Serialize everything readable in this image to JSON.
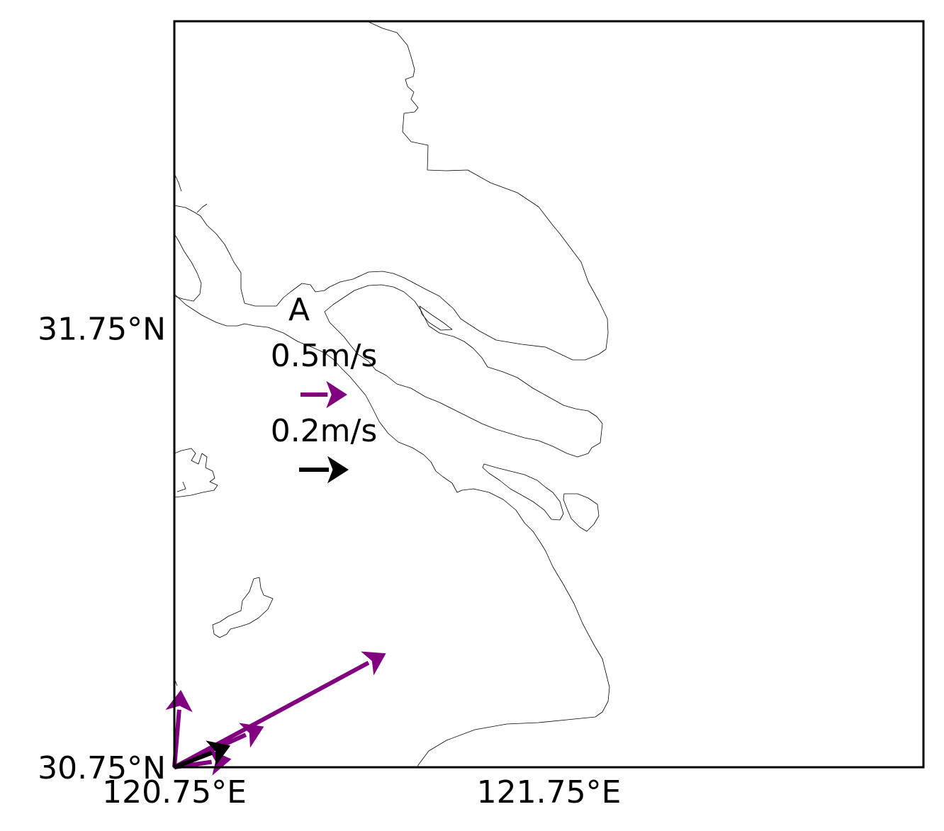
{
  "map": {
    "panel_label": "A",
    "lon_ticks": [
      {
        "value": 120.75,
        "label": "120.75°E"
      },
      {
        "value": 121.75,
        "label": "121.75°E"
      }
    ],
    "lat_ticks": [
      {
        "value": 30.75,
        "label": "30.75°N"
      },
      {
        "value": 31.75,
        "label": "31.75°N"
      }
    ],
    "extent": {
      "lon": [
        120.75,
        122.75
      ],
      "lat": [
        30.75,
        32.45
      ]
    },
    "colors": {
      "wind": "#800080",
      "current": "#000000",
      "frame": "#000000",
      "coast": "#000000"
    }
  },
  "legend": {
    "wind": {
      "label": "0.5m/s",
      "speed": 0.5,
      "color": "#800080"
    },
    "current": {
      "label": "0.2m/s",
      "speed": 0.2,
      "color": "#000000"
    }
  },
  "vectors": {
    "wind": [
      {
        "lon": 120.75,
        "lat": 30.75,
        "u": 2.6,
        "v": 1.4
      },
      {
        "lon": 120.75,
        "lat": 30.75,
        "u": 1.1,
        "v": 0.5
      },
      {
        "lon": 120.75,
        "lat": 30.75,
        "u": 0.7,
        "v": 0.1
      },
      {
        "lon": 120.75,
        "lat": 30.75,
        "u": 0.08,
        "v": 0.95
      }
    ],
    "current": [
      {
        "lon": 120.75,
        "lat": 30.75,
        "u": 0.26,
        "v": 0.1
      }
    ]
  }
}
